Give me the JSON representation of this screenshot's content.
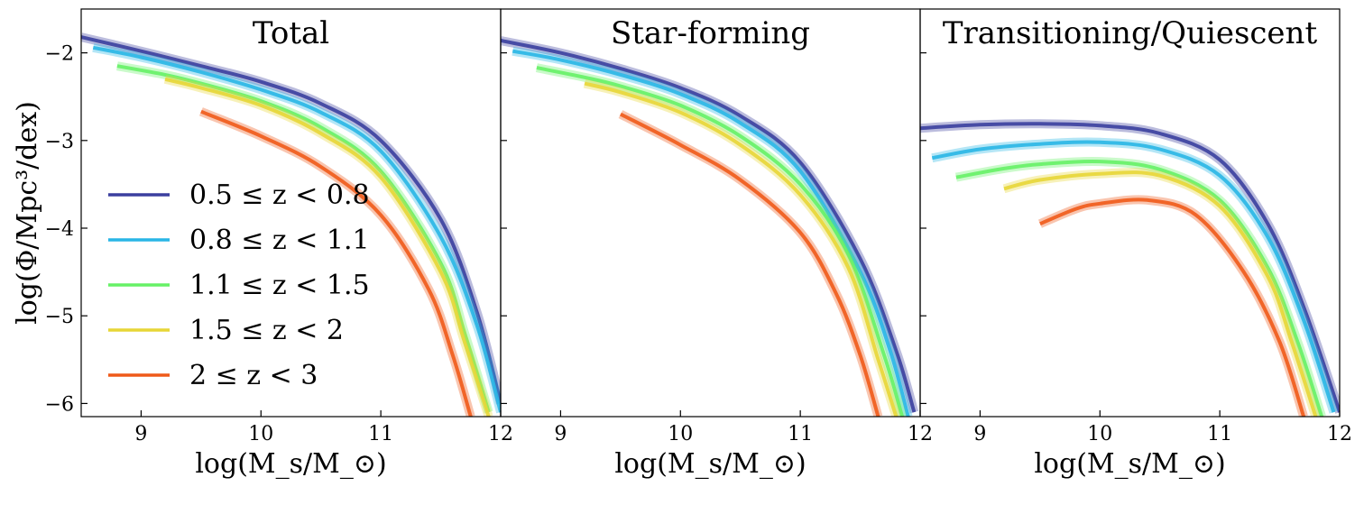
{
  "chart_data": {
    "type": "line",
    "ylabel": "log(Φ/Mpc³/dex)",
    "xlabel": "log(M_s/M_⊙)",
    "xlim": [
      8.5,
      12
    ],
    "ylim": [
      -6.15,
      -1.5
    ],
    "xticks": [
      "9",
      "10",
      "11",
      "12"
    ],
    "yticks": [
      "−2",
      "−3",
      "−4",
      "−5",
      "−6"
    ],
    "legend_placement": "lower-left of first panel",
    "series_styles": [
      {
        "name": "0.5 ≤ z < 0.8",
        "color": "#3b3f9f"
      },
      {
        "name": "0.8 ≤ z < 1.1",
        "color": "#29b6e6"
      },
      {
        "name": "1.1 ≤ z < 1.5",
        "color": "#66f166"
      },
      {
        "name": "1.5 ≤ z < 2",
        "color": "#e7d637"
      },
      {
        "name": "2 ≤ z < 3",
        "color": "#ef5a19"
      }
    ],
    "panels": [
      {
        "title": "Total",
        "series": [
          {
            "name": "0.5 ≤ z < 0.8",
            "x": [
              8.5,
              9.0,
              9.5,
              10.0,
              10.5,
              11.0,
              11.5,
              11.8,
              12.0
            ],
            "y": [
              -1.82,
              -1.98,
              -2.15,
              -2.33,
              -2.58,
              -3.0,
              -3.9,
              -4.95,
              -6.0
            ]
          },
          {
            "name": "0.8 ≤ z < 1.1",
            "x": [
              8.6,
              9.0,
              9.5,
              10.0,
              10.5,
              11.0,
              11.5,
              11.8,
              12.0
            ],
            "y": [
              -1.94,
              -2.05,
              -2.22,
              -2.42,
              -2.68,
              -3.12,
              -4.1,
              -5.1,
              -6.1
            ]
          },
          {
            "name": "1.1 ≤ z < 1.5",
            "x": [
              8.8,
              9.2,
              9.5,
              10.0,
              10.5,
              11.0,
              11.5,
              11.7,
              11.9
            ],
            "y": [
              -2.15,
              -2.25,
              -2.35,
              -2.55,
              -2.85,
              -3.35,
              -4.4,
              -5.2,
              -6.1
            ]
          },
          {
            "name": "1.5 ≤ z < 2",
            "x": [
              9.2,
              9.5,
              10.0,
              10.5,
              11.0,
              11.5,
              11.7,
              11.9
            ],
            "y": [
              -2.3,
              -2.4,
              -2.6,
              -2.92,
              -3.42,
              -4.5,
              -5.3,
              -6.15
            ]
          },
          {
            "name": "2 ≤ z < 3",
            "x": [
              9.5,
              10.0,
              10.5,
              11.0,
              11.4,
              11.6,
              11.75
            ],
            "y": [
              -2.67,
              -2.95,
              -3.3,
              -3.85,
              -4.7,
              -5.45,
              -6.15
            ]
          }
        ]
      },
      {
        "title": "Star-forming",
        "series": [
          {
            "name": "0.5 ≤ z < 0.8",
            "x": [
              8.5,
              9.0,
              9.5,
              10.0,
              10.5,
              11.0,
              11.5,
              11.8,
              11.95
            ],
            "y": [
              -1.86,
              -2.0,
              -2.18,
              -2.4,
              -2.72,
              -3.25,
              -4.35,
              -5.4,
              -6.1
            ]
          },
          {
            "name": "0.8 ≤ z < 1.1",
            "x": [
              8.6,
              9.0,
              9.5,
              10.0,
              10.5,
              11.0,
              11.5,
              11.75,
              11.9
            ],
            "y": [
              -1.98,
              -2.08,
              -2.25,
              -2.47,
              -2.8,
              -3.35,
              -4.5,
              -5.4,
              -6.15
            ]
          },
          {
            "name": "1.1 ≤ z < 1.5",
            "x": [
              8.8,
              9.2,
              9.5,
              10.0,
              10.5,
              11.0,
              11.4,
              11.7,
              11.85
            ],
            "y": [
              -2.17,
              -2.28,
              -2.38,
              -2.6,
              -2.95,
              -3.5,
              -4.3,
              -5.45,
              -6.15
            ]
          },
          {
            "name": "1.5 ≤ z < 2",
            "x": [
              9.2,
              9.5,
              10.0,
              10.5,
              11.0,
              11.4,
              11.65,
              11.8
            ],
            "y": [
              -2.35,
              -2.45,
              -2.68,
              -3.05,
              -3.62,
              -4.45,
              -5.5,
              -6.15
            ]
          },
          {
            "name": "2 ≤ z < 3",
            "x": [
              9.5,
              10.0,
              10.5,
              11.0,
              11.3,
              11.5,
              11.65
            ],
            "y": [
              -2.7,
              -3.05,
              -3.45,
              -4.05,
              -4.75,
              -5.45,
              -6.15
            ]
          }
        ]
      },
      {
        "title": "Transitioning/Quiescent",
        "series": [
          {
            "name": "0.5 ≤ z < 0.8",
            "x": [
              8.5,
              9.0,
              9.5,
              10.0,
              10.5,
              11.0,
              11.4,
              11.7,
              12.0
            ],
            "y": [
              -2.86,
              -2.82,
              -2.81,
              -2.83,
              -2.92,
              -3.22,
              -3.95,
              -4.9,
              -6.1
            ]
          },
          {
            "name": "0.8 ≤ z < 1.1",
            "x": [
              8.6,
              9.0,
              9.5,
              10.0,
              10.5,
              11.0,
              11.4,
              11.7,
              11.95
            ],
            "y": [
              -3.2,
              -3.1,
              -3.04,
              -3.02,
              -3.1,
              -3.4,
              -4.1,
              -5.05,
              -6.1
            ]
          },
          {
            "name": "1.1 ≤ z < 1.5",
            "x": [
              8.8,
              9.2,
              9.5,
              10.0,
              10.5,
              11.0,
              11.4,
              11.65,
              11.85
            ],
            "y": [
              -3.42,
              -3.32,
              -3.27,
              -3.24,
              -3.33,
              -3.68,
              -4.45,
              -5.3,
              -6.15
            ]
          },
          {
            "name": "1.5 ≤ z < 2",
            "x": [
              9.2,
              9.5,
              10.0,
              10.5,
              11.0,
              11.4,
              11.6,
              11.8
            ],
            "y": [
              -3.55,
              -3.45,
              -3.38,
              -3.4,
              -3.75,
              -4.55,
              -5.3,
              -6.15
            ]
          },
          {
            "name": "2 ≤ z < 3",
            "x": [
              9.5,
              9.8,
              10.0,
              10.4,
              10.8,
              11.2,
              11.5,
              11.7
            ],
            "y": [
              -3.95,
              -3.78,
              -3.72,
              -3.68,
              -3.85,
              -4.5,
              -5.3,
              -6.15
            ]
          }
        ]
      }
    ]
  }
}
